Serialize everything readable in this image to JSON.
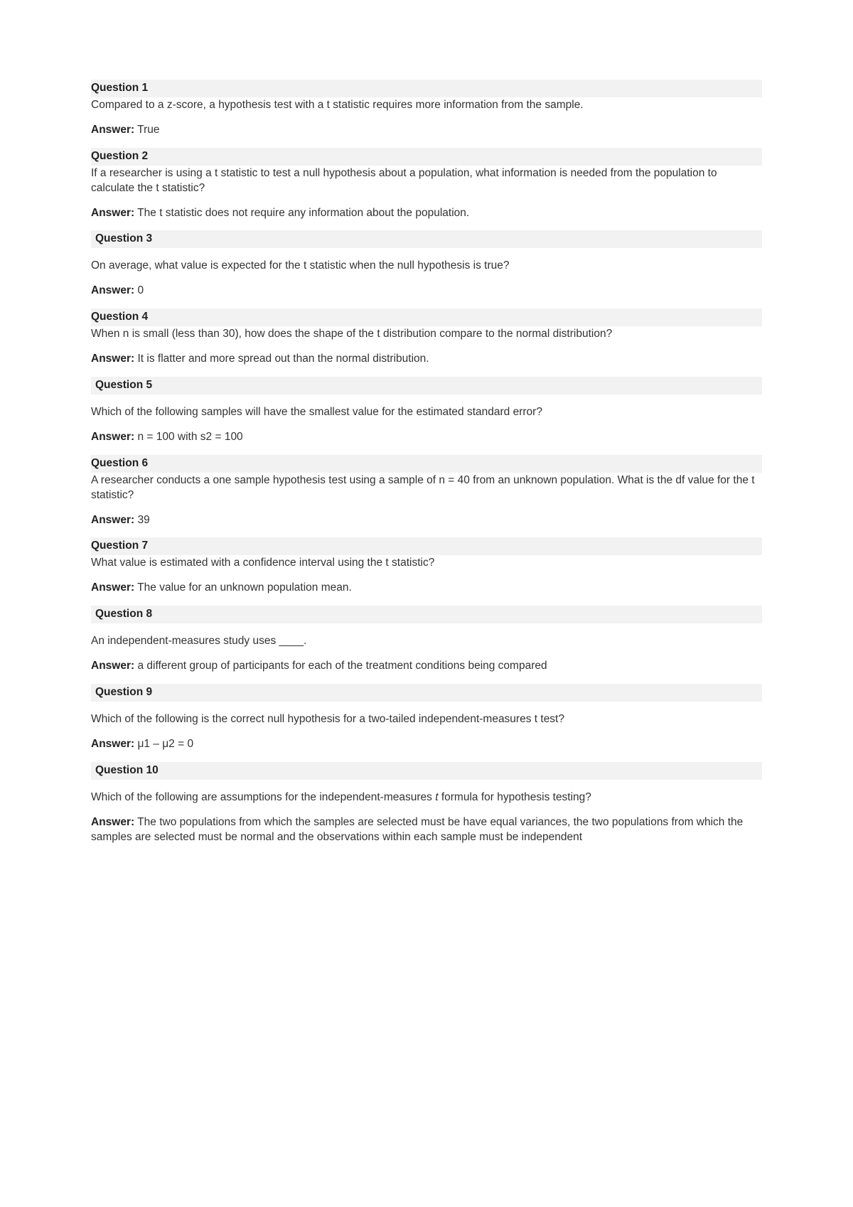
{
  "labels": {
    "answer": "Answer:"
  },
  "questions": [
    {
      "header": "Question 1",
      "indent": false,
      "text_sep": false,
      "text": "Compared to a z-score, a hypothesis test with a t statistic requires more information from the sample.",
      "answer": "True"
    },
    {
      "header": "Question 2",
      "indent": false,
      "text_sep": false,
      "text": "If a researcher is using a t statistic to test a null hypothesis about a population, what information is needed from the population to calculate the t statistic?",
      "answer": "The t statistic does not require any information about the population."
    },
    {
      "header": " Question 3",
      "indent": true,
      "text_sep": true,
      "text": "On average, what value is expected for the t statistic when the null hypothesis is true?",
      "answer": "0"
    },
    {
      "header": "Question 4",
      "indent": false,
      "text_sep": false,
      "text": "When n is small (less than 30), how does the shape of the t distribution compare to the normal distribution?",
      "answer": "It is flatter and more spread out than the normal distribution."
    },
    {
      "header": " Question 5",
      "indent": true,
      "text_sep": true,
      "text": "Which of the following samples will have the smallest value for the estimated standard error?",
      "answer": "n = 100 with s2 = 100"
    },
    {
      "header": "Question 6",
      "indent": false,
      "text_sep": false,
      "text": "A researcher conducts a one sample hypothesis test using a sample of n = 40 from an unknown population. What is the df value for the t statistic?",
      "answer": "39"
    },
    {
      "header": "Question 7",
      "indent": false,
      "text_sep": false,
      "text": "What value is estimated with a confidence interval using the t statistic?",
      "answer": "The value for an unknown population mean."
    },
    {
      "header": " Question 8",
      "indent": true,
      "text_sep": true,
      "text": "An independent-measures study uses ____.",
      "answer": "a different group of participants for each of the treatment conditions being compared"
    },
    {
      "header": " Question 9",
      "indent": true,
      "text_sep": true,
      "text": "Which of the following is the correct null hypothesis for a two-tailed independent-measures t test?",
      "answer": "μ1 – μ2 = 0"
    },
    {
      "header": " Question 10",
      "indent": true,
      "text_sep": true,
      "text_pre": "Which of the following are assumptions for the independent-measures ",
      "text_em": "t",
      "text_post": " formula for hypothesis testing?",
      "answer": "The two populations from which the samples are selected must be have equal variances, the two populations from which the samples are selected must be normal and the observations within each sample must be independent"
    }
  ]
}
